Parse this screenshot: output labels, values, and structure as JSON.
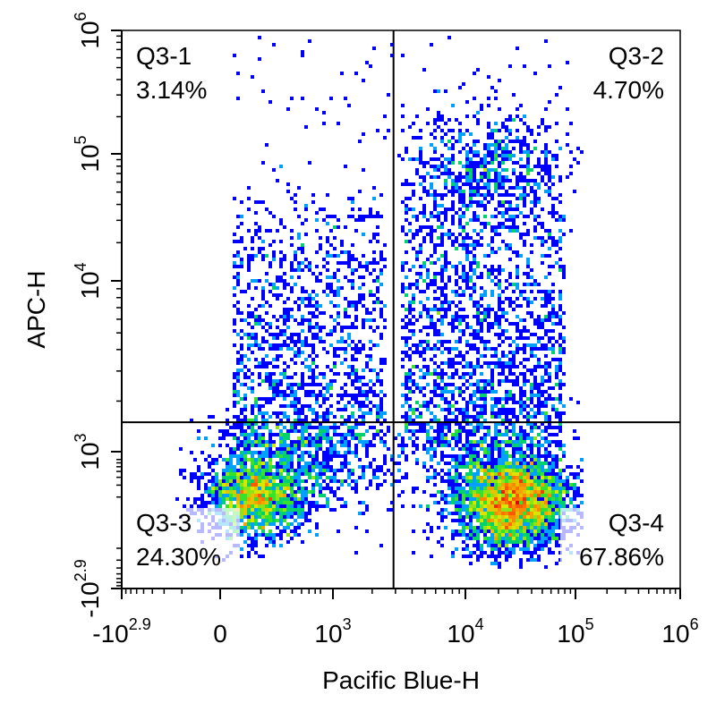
{
  "chart_data": {
    "type": "scatter",
    "subtype": "flow-cytometry density dot plot",
    "xlabel": "Pacific Blue-H",
    "ylabel": "APC-H",
    "x_scale": "biexponential",
    "y_scale": "biexponential",
    "xlim": [
      -794,
      1000000
    ],
    "ylim": [
      -794,
      1000000
    ],
    "x_ticks": [
      {
        "base": "-10",
        "exp": "2.9",
        "value": -794
      },
      {
        "base": "0",
        "exp": "",
        "value": 0
      },
      {
        "base": "10",
        "exp": "3",
        "value": 1000
      },
      {
        "base": "10",
        "exp": "4",
        "value": 10000
      },
      {
        "base": "10",
        "exp": "5",
        "value": 100000
      },
      {
        "base": "10",
        "exp": "6",
        "value": 1000000
      }
    ],
    "y_ticks": [
      {
        "base": "-10",
        "exp": "2.9",
        "value": -794
      },
      {
        "base": "10",
        "exp": "3",
        "value": 1000
      },
      {
        "base": "10",
        "exp": "4",
        "value": 10000
      },
      {
        "base": "10",
        "exp": "5",
        "value": 100000
      },
      {
        "base": "10",
        "exp": "6",
        "value": 1000000
      }
    ],
    "gate": {
      "x": 2900,
      "y": 1500
    },
    "quadrants": [
      {
        "name": "Q3-1",
        "percent": "3.14%",
        "position": "top-left"
      },
      {
        "name": "Q3-2",
        "percent": "4.70%",
        "position": "top-right"
      },
      {
        "name": "Q3-3",
        "percent": "24.30%",
        "position": "bottom-left"
      },
      {
        "name": "Q3-4",
        "percent": "67.86%",
        "position": "bottom-right"
      }
    ],
    "populations": [
      {
        "quadrant": "Q3-3",
        "center": [
          200,
          550
        ]
      },
      {
        "quadrant": "Q3-4",
        "center": [
          25000,
          600
        ]
      }
    ],
    "colors": {
      "density_low": "#0000ff",
      "density_mid": "#00e000",
      "density_high": "#ff0000",
      "axis": "#000000",
      "gate_line": "#000000"
    },
    "grid": false
  }
}
